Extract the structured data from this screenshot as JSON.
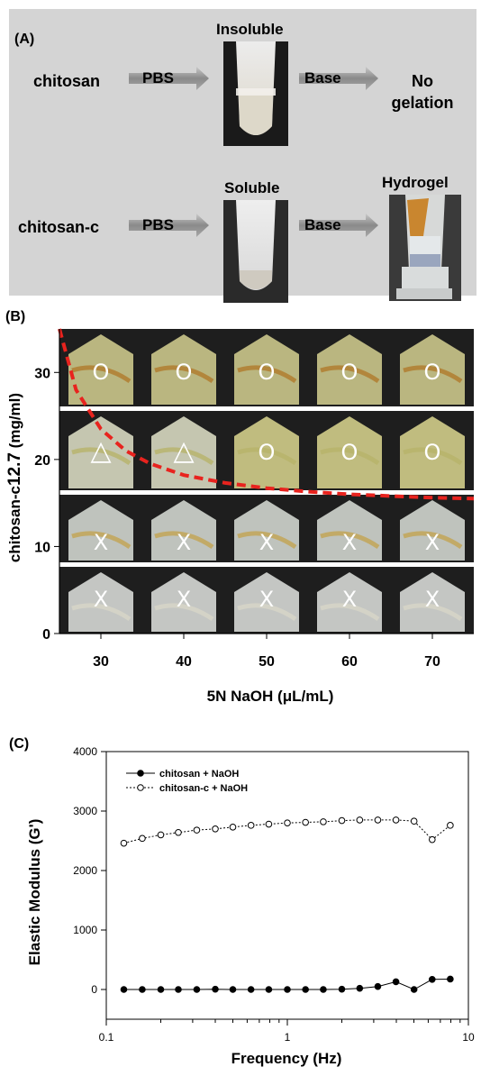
{
  "panelA": {
    "label": "(A)",
    "row1": {
      "material": "chitosan",
      "step1": "PBS",
      "state": "Insoluble",
      "step2": "Base",
      "result_line1": "No",
      "result_line2": "gelation"
    },
    "row2": {
      "material": "chitosan-c",
      "step1": "PBS",
      "state": "Soluble",
      "step2": "Base",
      "result": "Hydrogel"
    }
  },
  "panelB": {
    "label": "(B)",
    "chart_data": {
      "type": "table",
      "xlabel": "5N NaOH (μL/mL)",
      "ylabel": "chitosan-c12.7 (mg/ml)",
      "ylabel_main": "chitosan-c",
      "ylabel_sub": "12.7",
      "ylabel_unit": " (mg/ml)",
      "x_ticks": [
        30,
        40,
        50,
        60,
        70
      ],
      "y_ticks": [
        0,
        10,
        20,
        30
      ],
      "xlim": [
        25,
        75
      ],
      "ylim": [
        0,
        35
      ],
      "rows": [
        {
          "y": 30,
          "marks": [
            "O",
            "O",
            "O",
            "O",
            "O"
          ]
        },
        {
          "y": 20,
          "marks": [
            "△",
            "△",
            "O",
            "O",
            "O"
          ]
        },
        {
          "y": 10,
          "marks": [
            "X",
            "X",
            "X",
            "X",
            "X"
          ]
        },
        {
          "y": 0,
          "marks": [
            "X",
            "X",
            "X",
            "X",
            "X"
          ]
        }
      ],
      "boundary_curve": {
        "color": "#e8231e",
        "x": [
          25,
          27,
          30,
          33,
          36,
          40,
          45,
          50,
          55,
          60,
          65,
          70,
          75
        ],
        "y": [
          35,
          28,
          23.5,
          21,
          19.5,
          18.2,
          17.3,
          16.7,
          16.3,
          16.0,
          15.8,
          15.6,
          15.5
        ]
      }
    }
  },
  "panelC": {
    "label": "(C)",
    "chart_data": {
      "type": "line",
      "xlabel": "Frequency (Hz)",
      "ylabel": "Elastic Modulus (G')",
      "xscale": "log",
      "xlim": [
        0.1,
        10
      ],
      "ylim": [
        -500,
        4000
      ],
      "x_ticks": [
        0.1,
        1,
        10
      ],
      "x_tick_labels": [
        "0.1",
        "1",
        "10"
      ],
      "y_ticks": [
        0,
        1000,
        2000,
        3000,
        4000
      ],
      "y_tick_labels": [
        "0",
        "1000",
        "2000",
        "3000",
        "4000"
      ],
      "legend_position": "top-left",
      "x": [
        0.125,
        0.158,
        0.2,
        0.25,
        0.316,
        0.4,
        0.5,
        0.63,
        0.79,
        1.0,
        1.26,
        1.58,
        2.0,
        2.51,
        3.16,
        3.98,
        5.01,
        6.31,
        7.94
      ],
      "series": [
        {
          "name": "chitosan + NaOH",
          "marker": "filled",
          "line": "solid",
          "values": [
            0,
            0,
            0,
            0,
            0,
            5,
            0,
            0,
            0,
            0,
            0,
            0,
            5,
            20,
            50,
            130,
            0,
            170,
            175
          ]
        },
        {
          "name": "chitosan-c + NaOH",
          "marker": "open",
          "line": "dotted",
          "values": [
            2460,
            2540,
            2600,
            2640,
            2680,
            2700,
            2730,
            2760,
            2780,
            2800,
            2810,
            2820,
            2840,
            2850,
            2850,
            2850,
            2830,
            2520,
            2760
          ]
        }
      ]
    }
  }
}
